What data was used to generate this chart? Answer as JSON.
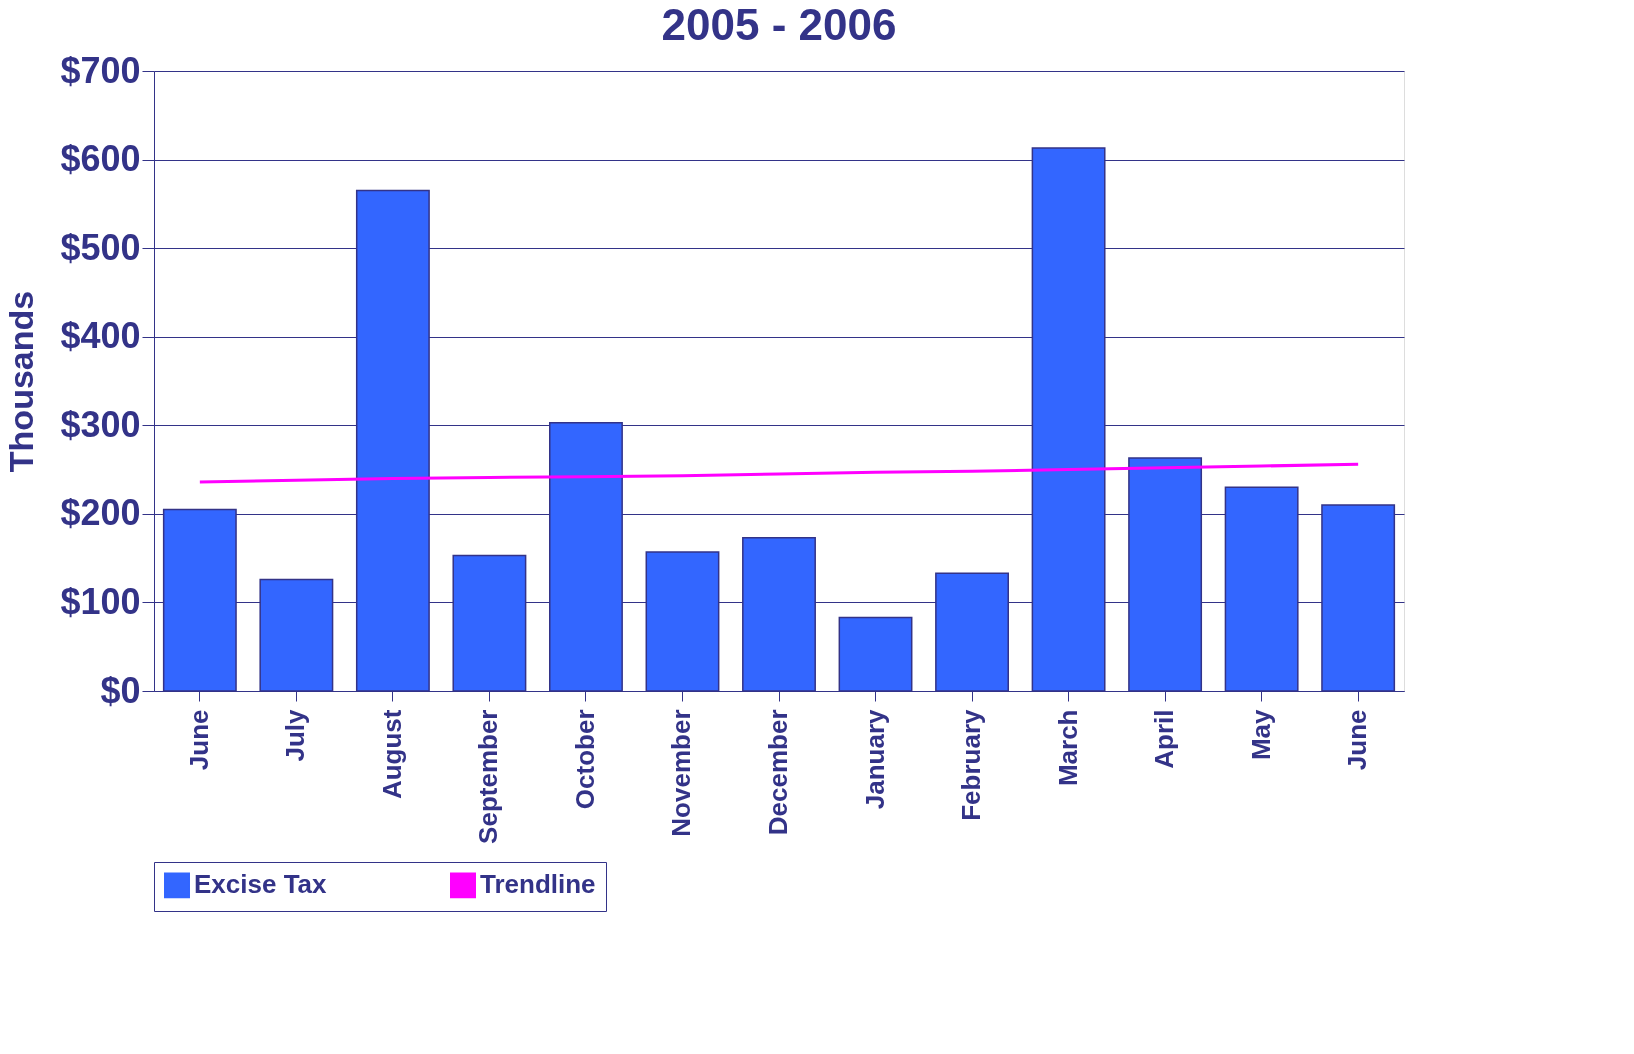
{
  "chart_data": {
    "type": "bar",
    "title": "2005 - 2006",
    "ylabel": "Thousands",
    "categories": [
      "June",
      "July",
      "August",
      "September",
      "October",
      "November",
      "December",
      "January",
      "February",
      "March",
      "April",
      "May",
      "June"
    ],
    "series": [
      {
        "name": "Excise Tax",
        "color": "#3366ff",
        "values": [
          205,
          126,
          565,
          153,
          303,
          157,
          173,
          83,
          133,
          613,
          263,
          230,
          210
        ]
      },
      {
        "name": "Trendline",
        "type": "line",
        "color": "#ff00ff",
        "values": [
          236,
          238,
          240,
          241,
          242,
          243,
          245,
          247,
          248,
          250,
          252,
          254,
          256
        ]
      }
    ],
    "ylim": [
      0,
      700
    ],
    "yticks": [
      {
        "value": 0,
        "label": "$0"
      },
      {
        "value": 100,
        "label": "$100"
      },
      {
        "value": 200,
        "label": "$200"
      },
      {
        "value": 300,
        "label": "$300"
      },
      {
        "value": 400,
        "label": "$400"
      },
      {
        "value": 500,
        "label": "$500"
      },
      {
        "value": 600,
        "label": "$600"
      },
      {
        "value": 700,
        "label": "$700"
      }
    ],
    "grid": "y",
    "legend": "bottom"
  }
}
